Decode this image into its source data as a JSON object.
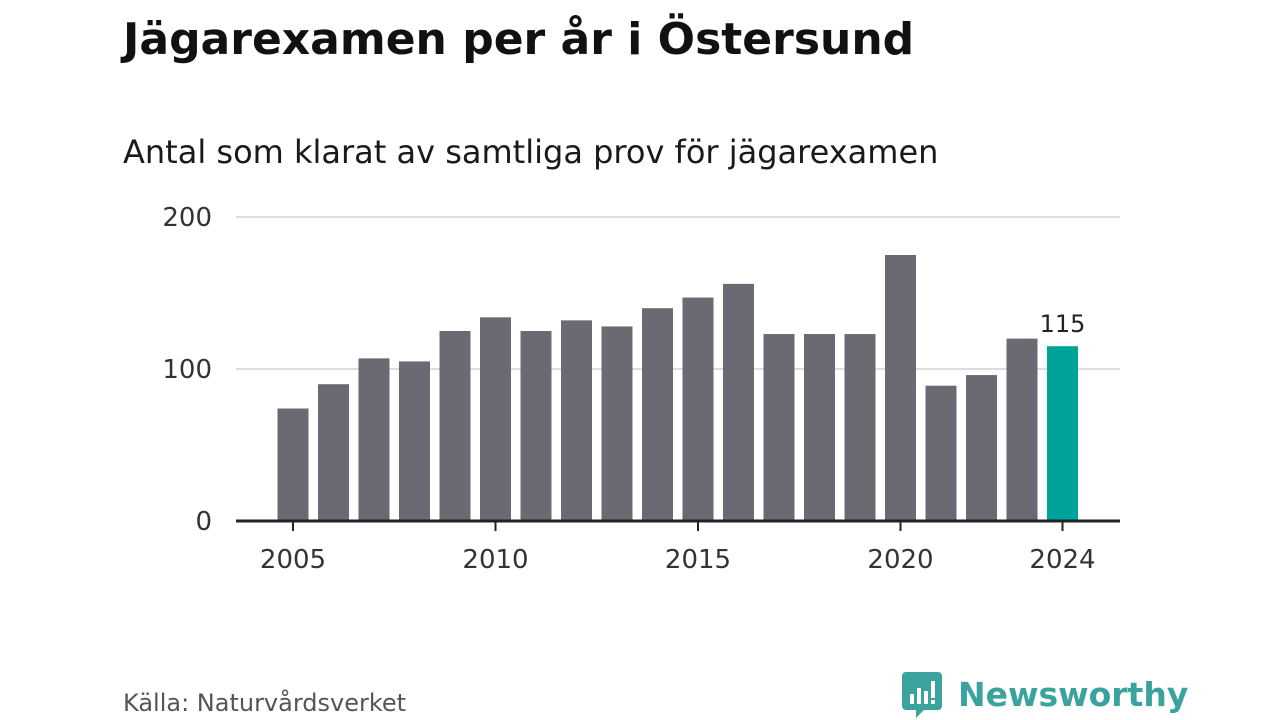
{
  "title": "Jägarexamen per år i Östersund",
  "subtitle": "Antal som klarat av samtliga prov för jägarexamen",
  "source": "Källa: Naturvårdsverket",
  "brand": {
    "name": "Newsworthy",
    "icon": "newsworthy-logo-icon",
    "color": "#3aa39d"
  },
  "colors": {
    "bar": "#6b6a72",
    "highlight": "#00a39a",
    "grid": "#dddddd",
    "axis": "#222222",
    "tick_text": "#333333"
  },
  "chart_data": {
    "type": "bar",
    "categories": [
      "2005",
      "2006",
      "2007",
      "2008",
      "2009",
      "2010",
      "2011",
      "2012",
      "2013",
      "2014",
      "2015",
      "2016",
      "2017",
      "2018",
      "2019",
      "2020",
      "2021",
      "2022",
      "2023",
      "2024"
    ],
    "values": [
      74,
      90,
      107,
      105,
      125,
      134,
      125,
      132,
      128,
      140,
      147,
      156,
      123,
      123,
      123,
      175,
      89,
      96,
      120,
      115
    ],
    "highlight_category": "2024",
    "data_labels": [
      {
        "category": "2024",
        "text": "115"
      }
    ],
    "ylim": [
      0,
      200
    ],
    "yticks": [
      0,
      100,
      200
    ],
    "xticks": [
      "2005",
      "2010",
      "2015",
      "2020",
      "2024"
    ],
    "xlabel": "",
    "ylabel": "",
    "grid": true,
    "legend": "none"
  }
}
